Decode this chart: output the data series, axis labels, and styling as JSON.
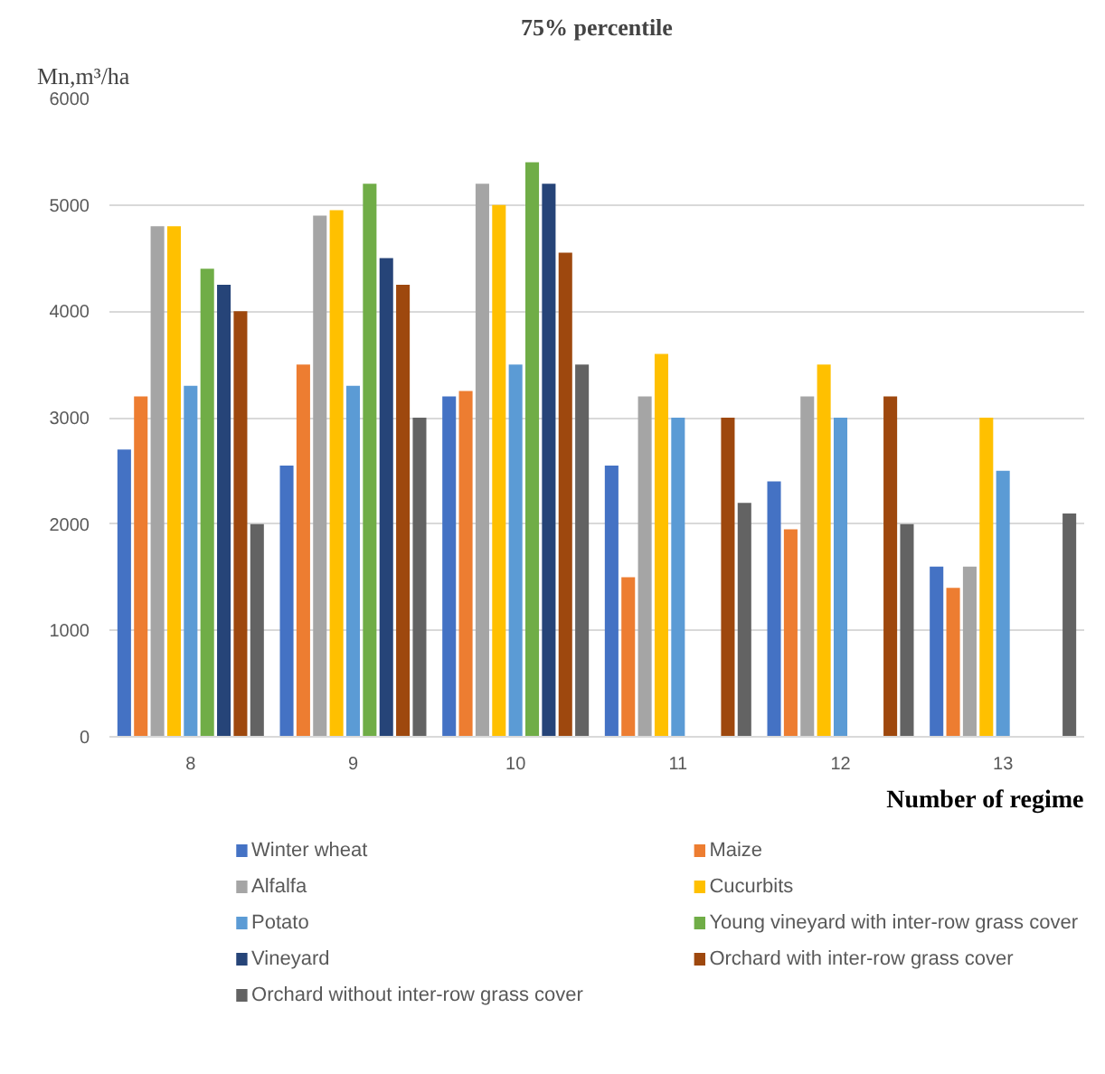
{
  "chart_data": {
    "type": "bar",
    "title": "75% percentile",
    "xlabel": "Number of regime",
    "ylabel": "Mn,m³/ha",
    "categories": [
      "8",
      "9",
      "10",
      "11",
      "12",
      "13"
    ],
    "ylim": [
      0,
      6000
    ],
    "yticks": [
      0,
      1000,
      2000,
      3000,
      4000,
      5000,
      6000
    ],
    "grid": "y",
    "legend": "bottom",
    "series": [
      {
        "name": "Winter wheat",
        "color": "#4472c4",
        "values": [
          2700,
          2550,
          3200,
          2550,
          2400,
          1600
        ]
      },
      {
        "name": "Maize",
        "color": "#ed7d31",
        "values": [
          3200,
          3500,
          3250,
          1500,
          1950,
          1400
        ]
      },
      {
        "name": "Alfalfa",
        "color": "#a5a5a5",
        "values": [
          4800,
          4900,
          5200,
          3200,
          3200,
          1600
        ]
      },
      {
        "name": "Cucurbits",
        "color": "#ffc000",
        "values": [
          4800,
          4950,
          5000,
          3600,
          3500,
          3000
        ]
      },
      {
        "name": "Potato",
        "color": "#5b9bd5",
        "values": [
          3300,
          3300,
          3500,
          3000,
          3000,
          2500
        ]
      },
      {
        "name": "Young vineyard with inter-row grass cover",
        "color": "#70ad47",
        "values": [
          4400,
          5200,
          5400,
          null,
          null,
          null
        ]
      },
      {
        "name": "Vineyard",
        "color": "#264478",
        "values": [
          4250,
          4500,
          5200,
          null,
          null,
          null
        ]
      },
      {
        "name": "Orchard with inter-row grass cover",
        "color": "#9e480e",
        "values": [
          4000,
          4250,
          4550,
          3000,
          3200,
          null
        ]
      },
      {
        "name": "Orchard without inter-row grass cover",
        "color": "#636363",
        "values": [
          2000,
          3000,
          3500,
          2200,
          2000,
          2100
        ]
      }
    ]
  }
}
